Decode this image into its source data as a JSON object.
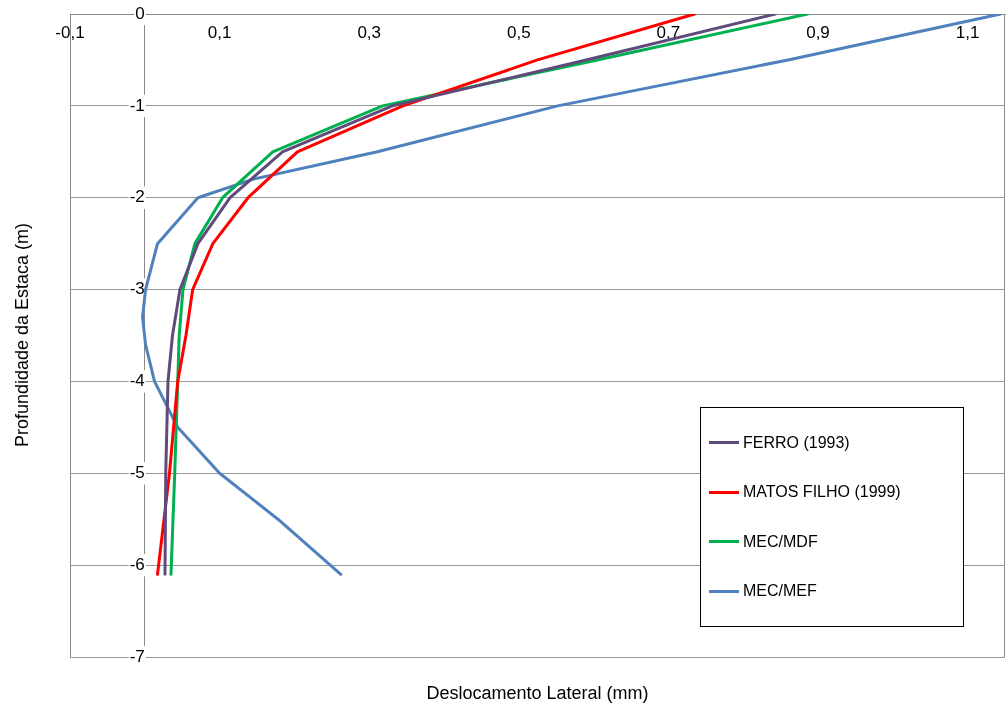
{
  "chart_data": {
    "type": "line",
    "xlabel": "Deslocamento Lateral (mm)",
    "ylabel": "Profundidade da Estaca (m)",
    "xlim": [
      -0.1,
      1.15
    ],
    "ylim": [
      -7,
      0
    ],
    "xticks": [
      {
        "value": -0.1,
        "label": "-0,1"
      },
      {
        "value": 0.1,
        "label": "0,1"
      },
      {
        "value": 0.3,
        "label": "0,3"
      },
      {
        "value": 0.5,
        "label": "0,5"
      },
      {
        "value": 0.7,
        "label": "0,7"
      },
      {
        "value": 0.9,
        "label": "0,9"
      },
      {
        "value": 1.1,
        "label": "1,1"
      }
    ],
    "yticks": [
      -7,
      -6,
      -5,
      -4,
      -3,
      -2,
      -1,
      0
    ],
    "grid": "y",
    "legend": "bottom right",
    "marker": "none",
    "line_style": "solid",
    "series": [
      {
        "name": "FERRO (1993)",
        "color": "#604a7b",
        "x": [
          0.843,
          0.59,
          0.331,
          0.184,
          0.114,
          0.071,
          0.047,
          0.037,
          0.031,
          0.028,
          0.027
        ],
        "values": [
          0,
          -0.5,
          -1,
          -1.5,
          -2,
          -2.5,
          -3,
          -3.5,
          -4,
          -5,
          -6.1
        ]
      },
      {
        "name": "MATOS FILHO (1999)",
        "color": "#ff0000",
        "x": [
          0.735,
          0.525,
          0.345,
          0.204,
          0.138,
          0.091,
          0.064,
          0.055,
          0.044,
          0.033,
          0.017
        ],
        "values": [
          0,
          -0.5,
          -1,
          -1.5,
          -2,
          -2.5,
          -3,
          -3.5,
          -4,
          -5,
          -6.1
        ]
      },
      {
        "name": "MEC/MDF",
        "color": "#00b050",
        "x": [
          0.886,
          0.605,
          0.318,
          0.171,
          0.104,
          0.067,
          0.051,
          0.046,
          0.044,
          0.04,
          0.035
        ],
        "values": [
          0,
          -0.5,
          -1,
          -1.5,
          -2,
          -2.5,
          -3,
          -3.5,
          -4,
          -5,
          -6.1
        ]
      },
      {
        "name": "MEC/MEF",
        "color": "#4f81bd",
        "x": [
          1.144,
          0.86,
          0.552,
          0.311,
          0.144,
          0.071,
          0.017,
          0.001,
          -0.003,
          0.001,
          0.013,
          0.044,
          0.1,
          0.178,
          0.262
        ],
        "values": [
          0,
          -0.5,
          -1,
          -1.5,
          -1.8,
          -2,
          -2.5,
          -3,
          -3.3,
          -3.6,
          -4,
          -4.5,
          -5,
          -5.5,
          -6.1
        ]
      }
    ]
  }
}
